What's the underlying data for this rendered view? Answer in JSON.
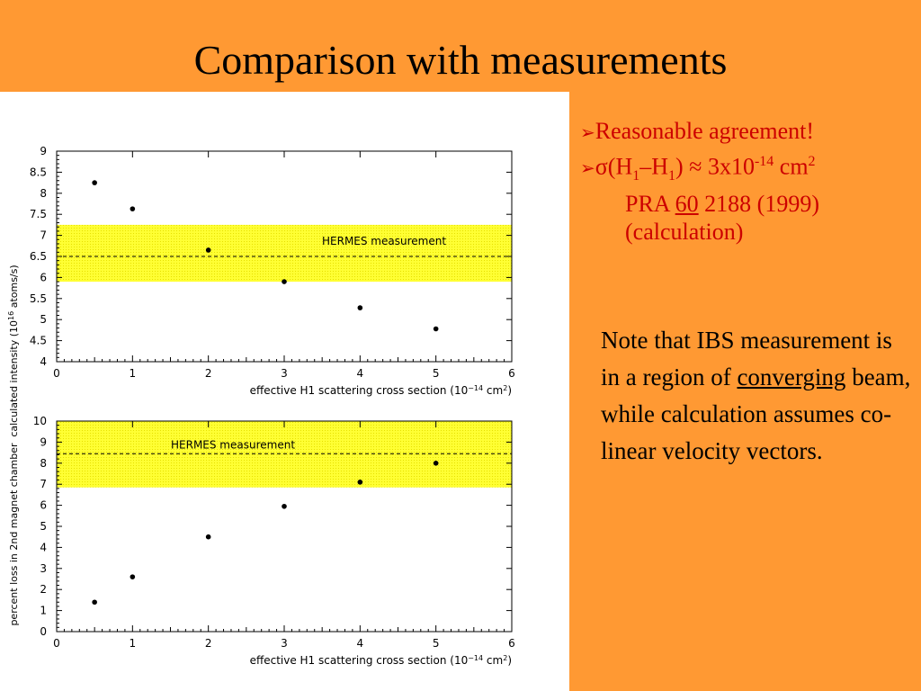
{
  "slide": {
    "title": "Comparison with measurements"
  },
  "bullets": {
    "arrow": "➢",
    "b1": "Reasonable agreement!",
    "b2": {
      "sigma": "σ",
      "open": "(H",
      "sub1": "1",
      "dash": "–H",
      "sub2": "1",
      "close": ")",
      "approx": " ≈ 3x10",
      "exp": "-14",
      "unit": " cm",
      "unit_exp": "2"
    },
    "ref": {
      "journal": "PRA ",
      "volume": "60",
      "rest": " 2188 (1999)"
    },
    "ref2": "(calculation)"
  },
  "note": {
    "part1": "Note that IBS measurement is in a region of ",
    "underlined": "converging",
    "part2": " beam, while calculation assumes co-linear velocity vectors."
  },
  "colors": {
    "background": "#ff9933",
    "band": "#ffff33",
    "bullet_text": "#cc0000"
  },
  "chart_data": [
    {
      "type": "scatter",
      "ylabel": "calculated intensity (10",
      "ylabel_exp": "16",
      "ylabel_end": " atoms/s)",
      "xlabel": "effective H1 scattering cross section (10",
      "xlabel_exp": "−14",
      "xlabel_mid": " cm",
      "xlabel_exp2": "2",
      "xlabel_end": ")",
      "xlim": [
        0,
        6
      ],
      "ylim": [
        4,
        9
      ],
      "xticks": [
        "0",
        "1",
        "2",
        "3",
        "4",
        "5",
        "6"
      ],
      "yticks": [
        "4",
        "4.5",
        "5",
        "5.5",
        "6",
        "6.5",
        "7",
        "7.5",
        "8",
        "8.5",
        "9"
      ],
      "x": [
        0.5,
        1,
        2,
        3,
        4,
        5
      ],
      "y": [
        8.25,
        7.63,
        6.65,
        5.9,
        5.28,
        4.78
      ],
      "band": {
        "low": 5.9,
        "high": 7.25,
        "center": 6.5,
        "label": "HERMES measurement"
      },
      "grid": false
    },
    {
      "type": "scatter",
      "ylabel": "percent loss in 2nd magnet chamber",
      "xlabel": "effective H1 scattering cross section (10",
      "xlabel_exp": "−14",
      "xlabel_mid": " cm",
      "xlabel_exp2": "2",
      "xlabel_end": ")",
      "xlim": [
        0,
        6
      ],
      "ylim": [
        0,
        10
      ],
      "xticks": [
        "0",
        "1",
        "2",
        "3",
        "4",
        "5",
        "6"
      ],
      "yticks": [
        "0",
        "1",
        "2",
        "3",
        "4",
        "5",
        "6",
        "7",
        "8",
        "9",
        "10"
      ],
      "x": [
        0.5,
        1,
        2,
        3,
        4,
        5
      ],
      "y": [
        1.4,
        2.6,
        4.5,
        5.95,
        7.1,
        8.0
      ],
      "band": {
        "low": 6.85,
        "high": 10,
        "center": 8.45,
        "label": "HERMES measurement"
      },
      "grid": false
    }
  ]
}
